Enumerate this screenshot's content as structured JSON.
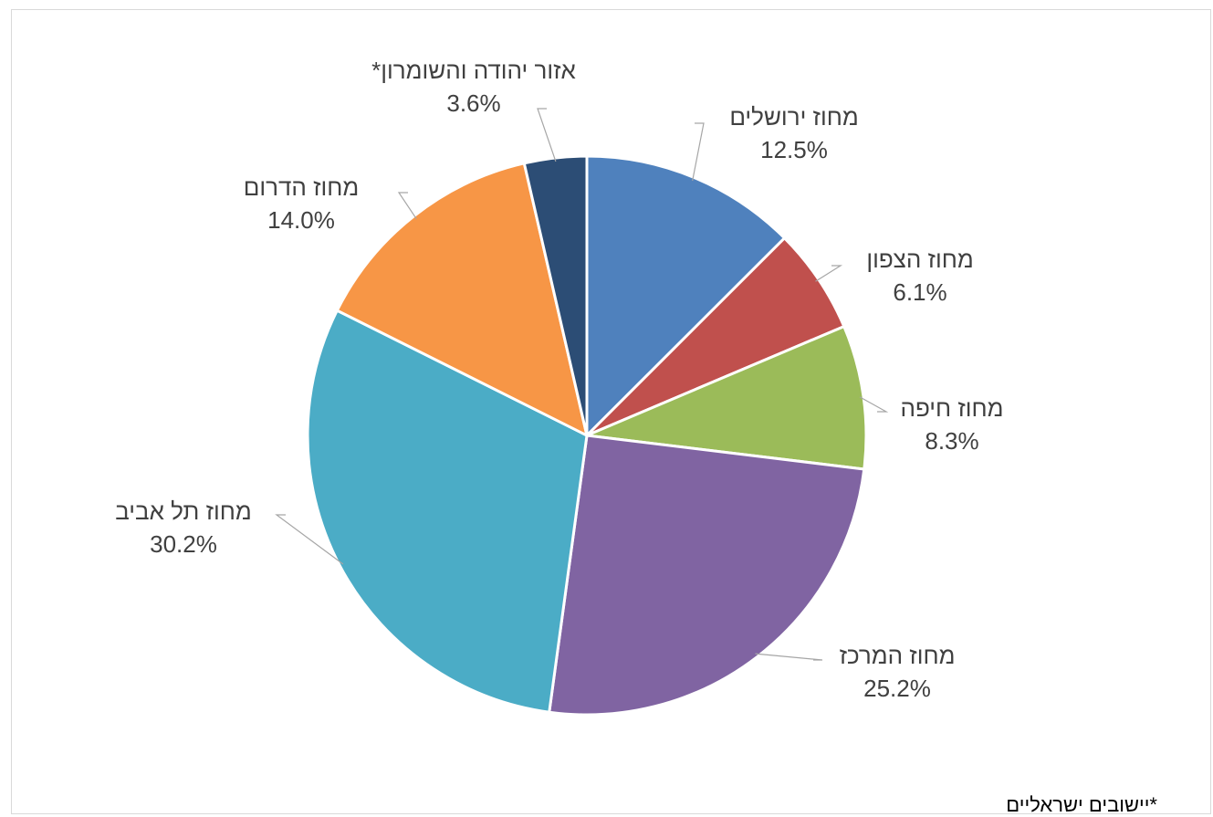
{
  "chart_data": {
    "type": "pie",
    "title": "",
    "slices": [
      {
        "label": "מחוז ירושלים",
        "value": 12.5,
        "display": "12.5%",
        "color": "#4F81BD"
      },
      {
        "label": "מחוז הצפון",
        "value": 6.1,
        "display": "6.1%",
        "color": "#C0504D"
      },
      {
        "label": "מחוז חיפה",
        "value": 8.3,
        "display": "8.3%",
        "color": "#9BBB59"
      },
      {
        "label": "מחוז המרכז",
        "value": 25.2,
        "display": "25.2%",
        "color": "#8064A2"
      },
      {
        "label": "מחוז תל אביב",
        "value": 30.2,
        "display": "30.2%",
        "color": "#4BACC6"
      },
      {
        "label": "מחוז הדרום",
        "value": 14.0,
        "display": "14.0%",
        "color": "#F79646"
      },
      {
        "label": "אזור יהודה והשומרון*",
        "value": 3.6,
        "display": "3.6%",
        "color": "#2C4D75"
      }
    ],
    "start_angle_deg": 0,
    "direction": "clockwise",
    "legend": "none",
    "data_labels": "outside-with-leader-lines"
  },
  "footnote": "*יישובים  ישראליים"
}
